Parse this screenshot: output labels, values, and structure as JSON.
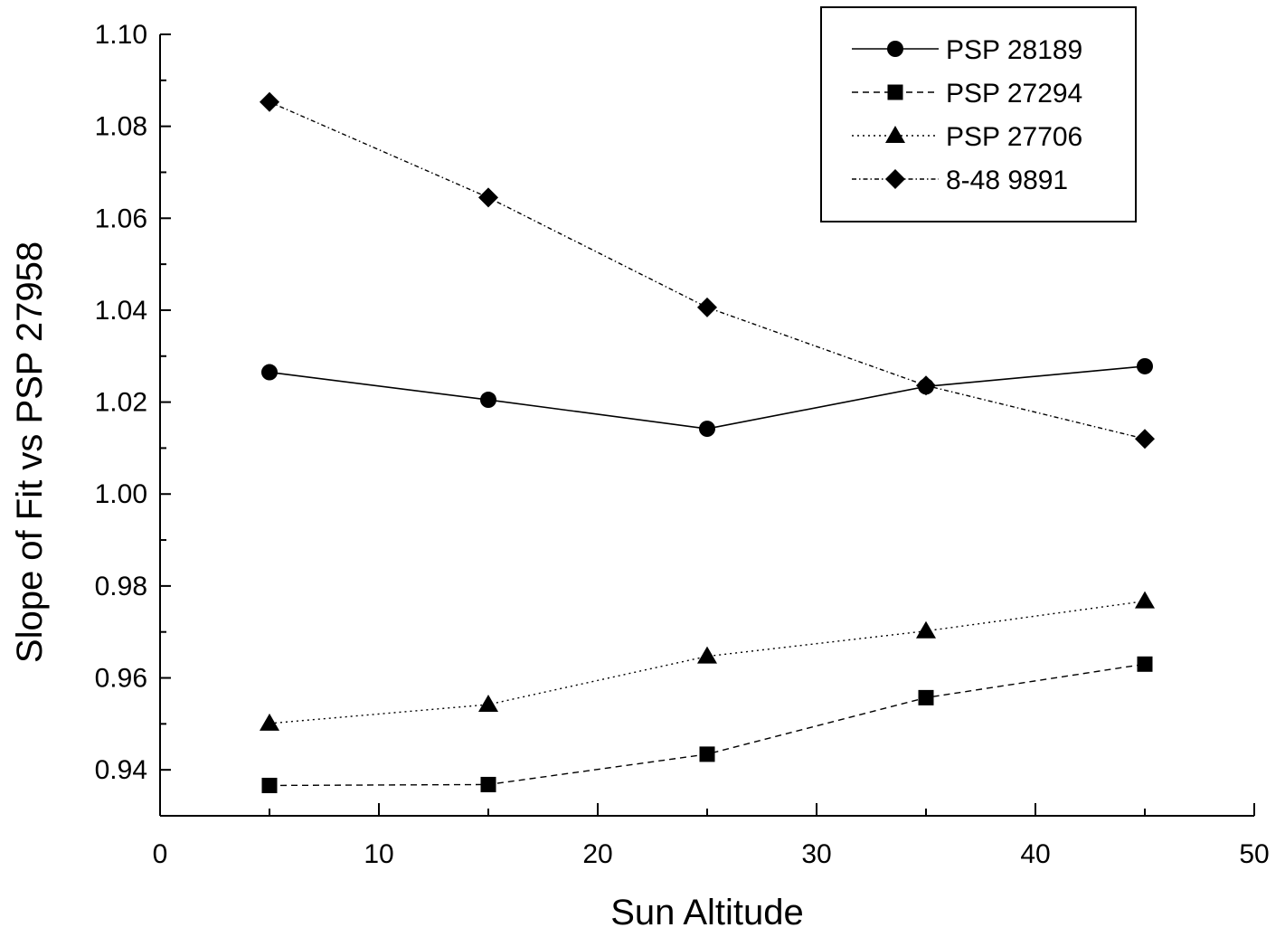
{
  "chart_data": {
    "type": "line",
    "xlabel": "Sun Altitude",
    "ylabel": "Slope of Fit vs PSP 27958",
    "xlim": [
      0,
      50
    ],
    "ylim": [
      0.93,
      1.1
    ],
    "x_ticks": [
      0,
      10,
      20,
      30,
      40,
      50
    ],
    "x_tick_labels": [
      "0",
      "10",
      "20",
      "30",
      "40",
      "50"
    ],
    "y_ticks": [
      0.94,
      0.96,
      0.98,
      1.0,
      1.02,
      1.04,
      1.06,
      1.08,
      1.1
    ],
    "y_tick_labels": [
      "0.94",
      "0.96",
      "0.98",
      "1.00",
      "1.02",
      "1.04",
      "1.06",
      "1.08",
      "1.10"
    ],
    "grid": false,
    "legend_position": "top-right",
    "x": [
      5,
      15,
      25,
      35,
      45
    ],
    "series": [
      {
        "name": "PSP 28189",
        "marker": "circle",
        "line": "solid",
        "values": [
          1.0265,
          1.0205,
          1.0142,
          1.0234,
          1.0278
        ]
      },
      {
        "name": "PSP 27294",
        "marker": "square",
        "line": "dashed",
        "values": [
          0.9366,
          0.9368,
          0.9434,
          0.9557,
          0.963
        ]
      },
      {
        "name": "PSP 27706",
        "marker": "triangle",
        "line": "dotted",
        "values": [
          0.9501,
          0.9542,
          0.9647,
          0.9702,
          0.9767
        ]
      },
      {
        "name": "8-48 9891",
        "marker": "diamond",
        "line": "dashdot",
        "values": [
          1.0853,
          1.0645,
          1.0406,
          1.0236,
          1.012
        ]
      }
    ]
  }
}
